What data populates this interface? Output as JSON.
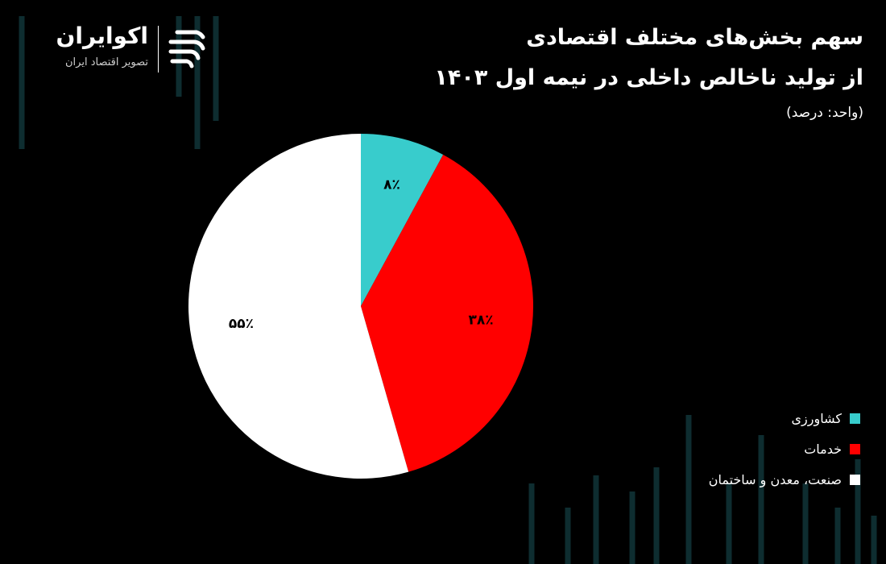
{
  "header": {
    "title_line1": "سهم بخش‌های مختلف اقتصادی",
    "title_line2": "از تولید ناخالص داخلی در نیمه اول ۱۴۰۳",
    "unit": "(واحد: درصد)"
  },
  "brand": {
    "name": "اکوایران",
    "tagline": "تصویر اقتصاد ایران",
    "logo_icon": "ecoiran-logo-icon"
  },
  "colors": {
    "background": "#000000",
    "agriculture": "#38CCCC",
    "services": "#FF0000",
    "industry": "#FFFFFF",
    "label_text": "#000000"
  },
  "chart_data": {
    "type": "pie",
    "title": "سهم بخش‌های مختلف اقتصادی از تولید ناخالص داخلی در نیمه اول ۱۴۰۳",
    "unit": "درصد",
    "start_angle": "top, clockwise",
    "legend_position": "bottom-right",
    "slices": [
      {
        "name": "کشاورزی",
        "value": 8,
        "label": "۸٪",
        "color": "#38CCCC"
      },
      {
        "name": "خدمات",
        "value": 38,
        "label": "۳۸٪",
        "color": "#FF0000"
      },
      {
        "name": "صنعت، معدن و ساختمان",
        "value": 55,
        "label": "۵۵٪",
        "color": "#FFFFFF"
      }
    ]
  }
}
